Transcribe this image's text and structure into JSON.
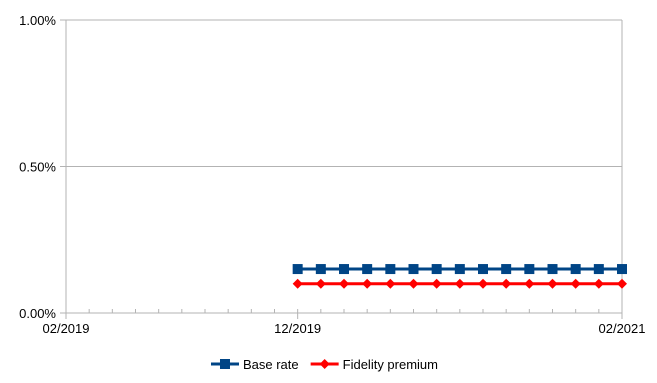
{
  "chart_data": {
    "type": "line",
    "x_axis": {
      "type": "date",
      "ticks": [
        "02/2019",
        "12/2019",
        "02/2021"
      ],
      "minor_ticks_monthly": true
    },
    "y_axis": {
      "ticks": [
        "1.00%",
        "0.50%",
        "0.00%"
      ],
      "ylim": [
        0,
        1.0
      ],
      "unit": "%"
    },
    "grid": "horizontal",
    "legend_position": "bottom",
    "series": [
      {
        "name": "Base rate",
        "color": "#004586",
        "marker": "square",
        "x": [
          "12/2019",
          "01/2020",
          "02/2020",
          "03/2020",
          "04/2020",
          "05/2020",
          "06/2020",
          "07/2020",
          "08/2020",
          "09/2020",
          "10/2020",
          "11/2020",
          "12/2020",
          "01/2021",
          "02/2021"
        ],
        "values": [
          0.15,
          0.15,
          0.15,
          0.15,
          0.15,
          0.15,
          0.15,
          0.15,
          0.15,
          0.15,
          0.15,
          0.15,
          0.15,
          0.15,
          0.15
        ]
      },
      {
        "name": "Fidelity premium",
        "color": "#ff0000",
        "marker": "diamond",
        "x": [
          "12/2019",
          "01/2020",
          "02/2020",
          "03/2020",
          "04/2020",
          "05/2020",
          "06/2020",
          "07/2020",
          "08/2020",
          "09/2020",
          "10/2020",
          "11/2020",
          "12/2020",
          "01/2021",
          "02/2021"
        ],
        "values": [
          0.1,
          0.1,
          0.1,
          0.1,
          0.1,
          0.1,
          0.1,
          0.1,
          0.1,
          0.1,
          0.1,
          0.1,
          0.1,
          0.1,
          0.1
        ]
      }
    ]
  }
}
